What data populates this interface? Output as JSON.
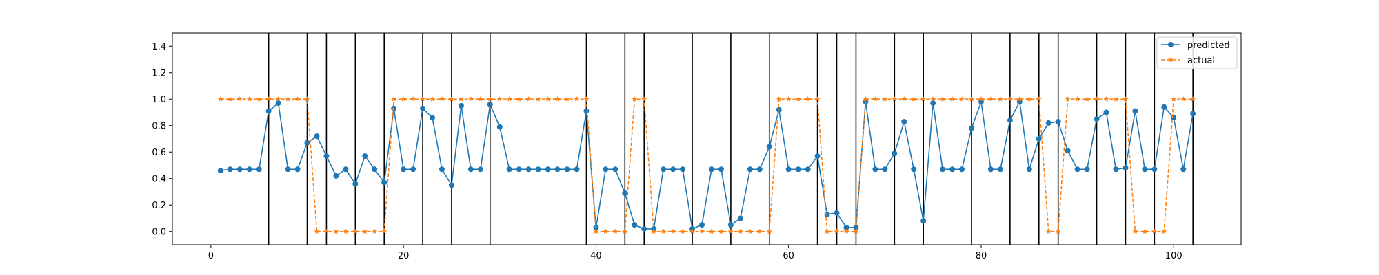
{
  "chart_data": {
    "type": "line",
    "xlim": [
      -4,
      107
    ],
    "ylim": [
      -0.1,
      1.5
    ],
    "xticks": [
      0,
      20,
      40,
      60,
      80,
      100
    ],
    "yticks": [
      0.0,
      0.2,
      0.4,
      0.6,
      0.8,
      1.0,
      1.2,
      1.4
    ],
    "vlines": [
      6,
      10,
      12,
      15,
      18,
      22,
      25,
      29,
      39,
      43,
      45,
      50,
      54,
      58,
      63,
      65,
      67,
      71,
      74,
      79,
      83,
      86,
      88,
      92,
      95,
      98,
      102
    ],
    "legend_position": "top-right",
    "series": [
      {
        "name": "predicted",
        "color": "#1f77b4",
        "style": "solid",
        "marker": "circle",
        "x": [
          1,
          2,
          3,
          4,
          5,
          6,
          7,
          8,
          9,
          10,
          11,
          12,
          13,
          14,
          15,
          16,
          17,
          18,
          19,
          20,
          21,
          22,
          23,
          24,
          25,
          26,
          27,
          28,
          29,
          30,
          31,
          32,
          33,
          34,
          35,
          36,
          37,
          38,
          39,
          40,
          41,
          42,
          43,
          44,
          45,
          46,
          47,
          48,
          49,
          50,
          51,
          52,
          53,
          54,
          55,
          56,
          57,
          58,
          59,
          60,
          61,
          62,
          63,
          64,
          65,
          66,
          67,
          68,
          69,
          70,
          71,
          72,
          73,
          74,
          75,
          76,
          77,
          78,
          79,
          80,
          81,
          82,
          83,
          84,
          85,
          86,
          87,
          88,
          89,
          90,
          91,
          92,
          93,
          94,
          95,
          96,
          97,
          98,
          99,
          100,
          101,
          102
        ],
        "y": [
          0.46,
          0.47,
          0.47,
          0.47,
          0.47,
          0.91,
          0.97,
          0.47,
          0.47,
          0.67,
          0.72,
          0.57,
          0.42,
          0.47,
          0.36,
          0.57,
          0.47,
          0.37,
          0.93,
          0.47,
          0.47,
          0.93,
          0.86,
          0.47,
          0.35,
          0.95,
          0.47,
          0.47,
          0.96,
          0.79,
          0.47,
          0.47,
          0.47,
          0.47,
          0.47,
          0.47,
          0.47,
          0.47,
          0.91,
          0.03,
          0.47,
          0.47,
          0.29,
          0.05,
          0.02,
          0.02,
          0.47,
          0.47,
          0.47,
          0.02,
          0.05,
          0.47,
          0.47,
          0.05,
          0.1,
          0.47,
          0.47,
          0.64,
          0.92,
          0.47,
          0.47,
          0.47,
          0.57,
          0.13,
          0.14,
          0.03,
          0.03,
          0.98,
          0.47,
          0.47,
          0.59,
          0.83,
          0.47,
          0.08,
          0.97,
          0.47,
          0.47,
          0.47,
          0.78,
          0.98,
          0.47,
          0.47,
          0.84,
          0.98,
          0.47,
          0.7,
          0.82,
          0.83,
          0.61,
          0.47,
          0.47,
          0.85,
          0.9,
          0.47,
          0.48,
          0.91,
          0.47,
          0.47,
          0.94,
          0.86,
          0.47,
          0.89
        ]
      },
      {
        "name": "actual",
        "color": "#ff7f0e",
        "style": "dashed",
        "marker": "star",
        "x": [
          1,
          2,
          3,
          4,
          5,
          6,
          7,
          8,
          9,
          10,
          11,
          12,
          13,
          14,
          15,
          16,
          17,
          18,
          19,
          20,
          21,
          22,
          23,
          24,
          25,
          26,
          27,
          28,
          29,
          30,
          31,
          32,
          33,
          34,
          35,
          36,
          37,
          38,
          39,
          40,
          41,
          42,
          43,
          44,
          45,
          46,
          47,
          48,
          49,
          50,
          51,
          52,
          53,
          54,
          55,
          56,
          57,
          58,
          59,
          60,
          61,
          62,
          63,
          64,
          65,
          66,
          67,
          68,
          69,
          70,
          71,
          72,
          73,
          74,
          75,
          76,
          77,
          78,
          79,
          80,
          81,
          82,
          83,
          84,
          85,
          86,
          87,
          88,
          89,
          90,
          91,
          92,
          93,
          94,
          95,
          96,
          97,
          98,
          99,
          100,
          101,
          102
        ],
        "y": [
          1,
          1,
          1,
          1,
          1,
          1,
          1,
          1,
          1,
          1,
          0,
          0,
          0,
          0,
          0,
          0,
          0,
          0,
          1,
          1,
          1,
          1,
          1,
          1,
          1,
          1,
          1,
          1,
          1,
          1,
          1,
          1,
          1,
          1,
          1,
          1,
          1,
          1,
          1,
          0,
          0,
          0,
          0,
          1,
          1,
          0,
          0,
          0,
          0,
          0,
          0,
          0,
          0,
          0,
          0,
          0,
          0,
          0,
          1,
          1,
          1,
          1,
          1,
          0,
          0,
          0,
          0,
          1,
          1,
          1,
          1,
          1,
          1,
          1,
          1,
          1,
          1,
          1,
          1,
          1,
          1,
          1,
          1,
          1,
          1,
          1,
          0,
          0,
          1,
          1,
          1,
          1,
          1,
          1,
          1,
          0,
          0,
          0,
          0,
          1,
          1,
          1
        ]
      }
    ]
  }
}
